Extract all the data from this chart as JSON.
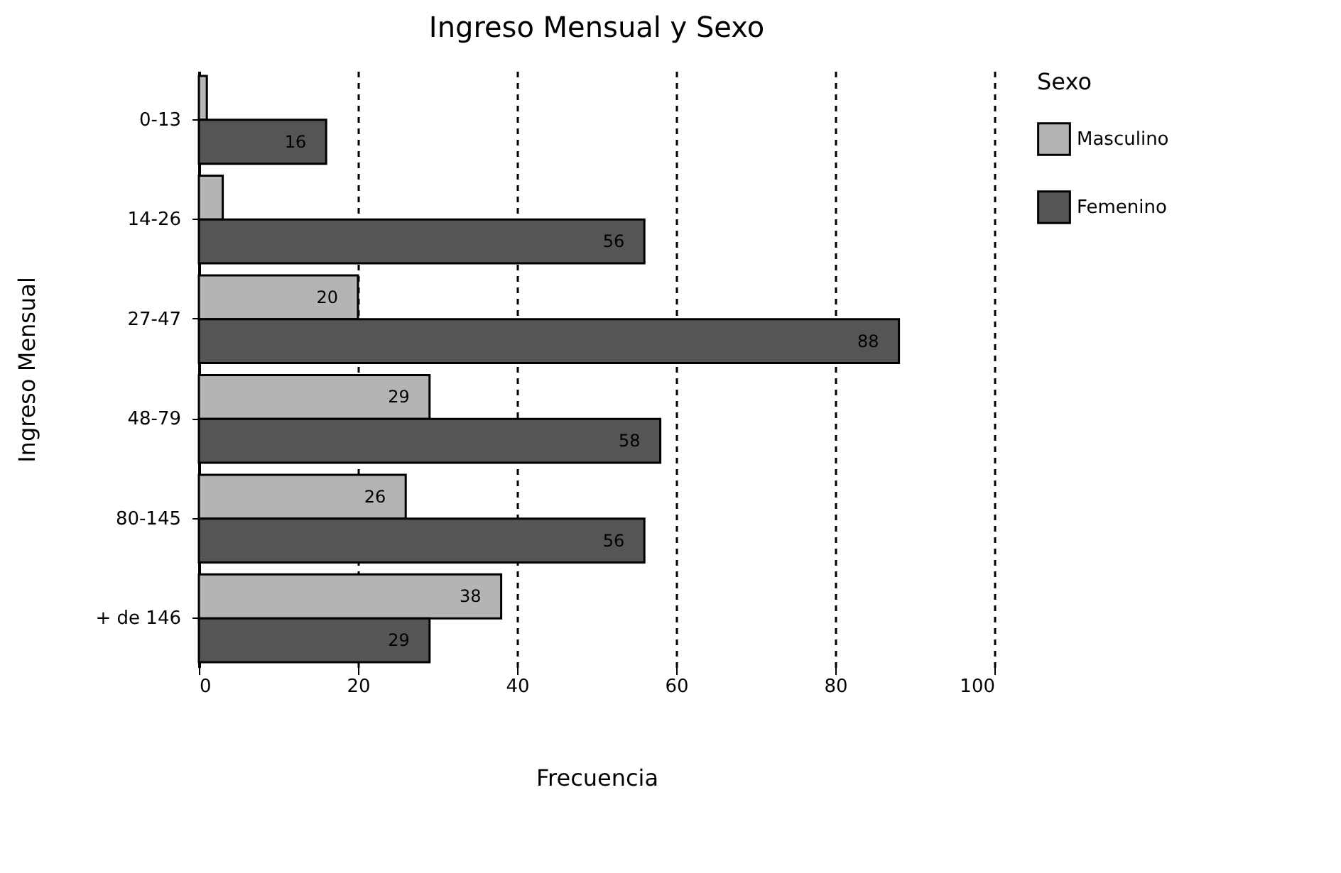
{
  "chart_data": {
    "type": "bar",
    "orientation": "horizontal",
    "title": "Ingreso Mensual y Sexo",
    "xlabel": "Frecuencia",
    "ylabel": "Ingreso Mensual",
    "legend_title": "Sexo",
    "categories": [
      "0-13",
      "14-26",
      "27-47",
      "48-79",
      "80-145",
      "+ de 146"
    ],
    "series": [
      {
        "name": "Masculino",
        "color": "#b4b4b4",
        "values": [
          1,
          3,
          20,
          29,
          26,
          38
        ],
        "value_labels": [
          null,
          null,
          "20",
          "29",
          "26",
          "38"
        ]
      },
      {
        "name": "Femenino",
        "color": "#555555",
        "values": [
          16,
          56,
          88,
          58,
          56,
          29
        ],
        "value_labels": [
          "16",
          "56",
          "88",
          "58",
          "56",
          "29"
        ]
      }
    ],
    "xlim": [
      0,
      100
    ],
    "xticks": [
      0,
      20,
      40,
      60,
      80,
      100
    ],
    "grid": "x",
    "legend": "right"
  }
}
